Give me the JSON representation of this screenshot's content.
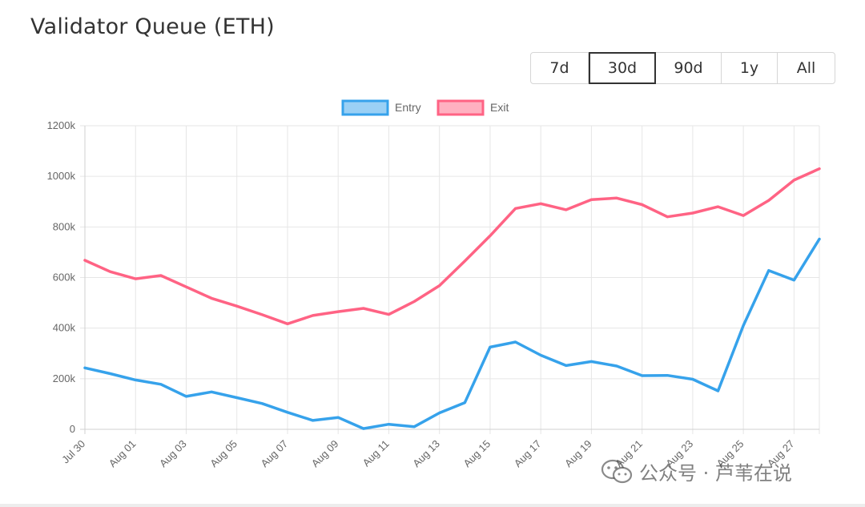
{
  "header": {
    "title": "Validator Queue (ETH)"
  },
  "range_selector": {
    "options": [
      "7d",
      "30d",
      "90d",
      "1y",
      "All"
    ],
    "selected": "30d"
  },
  "watermark": {
    "text": "公众号 · 芦苇在说"
  },
  "colors": {
    "entry": "#36a2eb",
    "exit": "#ff6384",
    "entry_fill": "#9ad0f5",
    "exit_fill": "#ffb1c1",
    "grid": "#e6e6e6"
  },
  "chart_data": {
    "type": "line",
    "x": [
      "Jul 30",
      "Jul 31",
      "Aug 01",
      "Aug 02",
      "Aug 03",
      "Aug 04",
      "Aug 05",
      "Aug 06",
      "Aug 07",
      "Aug 08",
      "Aug 09",
      "Aug 10",
      "Aug 11",
      "Aug 12",
      "Aug 13",
      "Aug 14",
      "Aug 15",
      "Aug 16",
      "Aug 17",
      "Aug 18",
      "Aug 19",
      "Aug 20",
      "Aug 21",
      "Aug 22",
      "Aug 23",
      "Aug 24",
      "Aug 25",
      "Aug 26",
      "Aug 27",
      "Aug 28"
    ],
    "x_tick_labels": [
      "Jul 30",
      "Aug 01",
      "Aug 03",
      "Aug 05",
      "Aug 07",
      "Aug 09",
      "Aug 11",
      "Aug 13",
      "Aug 15",
      "Aug 17",
      "Aug 19",
      "Aug 21",
      "Aug 23",
      "Aug 25",
      "Aug 27"
    ],
    "series": [
      {
        "name": "Entry",
        "color": "#36a2eb",
        "values": [
          243000,
          220000,
          195000,
          178000,
          130000,
          148000,
          125000,
          102000,
          67000,
          35000,
          47000,
          3000,
          20000,
          10000,
          65000,
          105000,
          325000,
          345000,
          293000,
          252000,
          268000,
          250000,
          212000,
          213000,
          198000,
          152000,
          410000,
          628000,
          590000,
          752000
        ]
      },
      {
        "name": "Exit",
        "color": "#ff6384",
        "values": [
          668000,
          623000,
          595000,
          608000,
          563000,
          518000,
          487000,
          453000,
          417000,
          450000,
          465000,
          478000,
          454000,
          505000,
          568000,
          665000,
          765000,
          873000,
          892000,
          868000,
          908000,
          914000,
          888000,
          840000,
          855000,
          880000,
          845000,
          905000,
          985000,
          1030000
        ]
      }
    ],
    "legend": [
      "Entry",
      "Exit"
    ],
    "legend_position": "top-center",
    "ylim": [
      0,
      1200000
    ],
    "y_ticks": [
      0,
      200000,
      400000,
      600000,
      800000,
      1000000,
      1200000
    ],
    "y_tick_labels": [
      "0",
      "200k",
      "400k",
      "600k",
      "800k",
      "1000k",
      "1200k"
    ],
    "grid": true
  }
}
